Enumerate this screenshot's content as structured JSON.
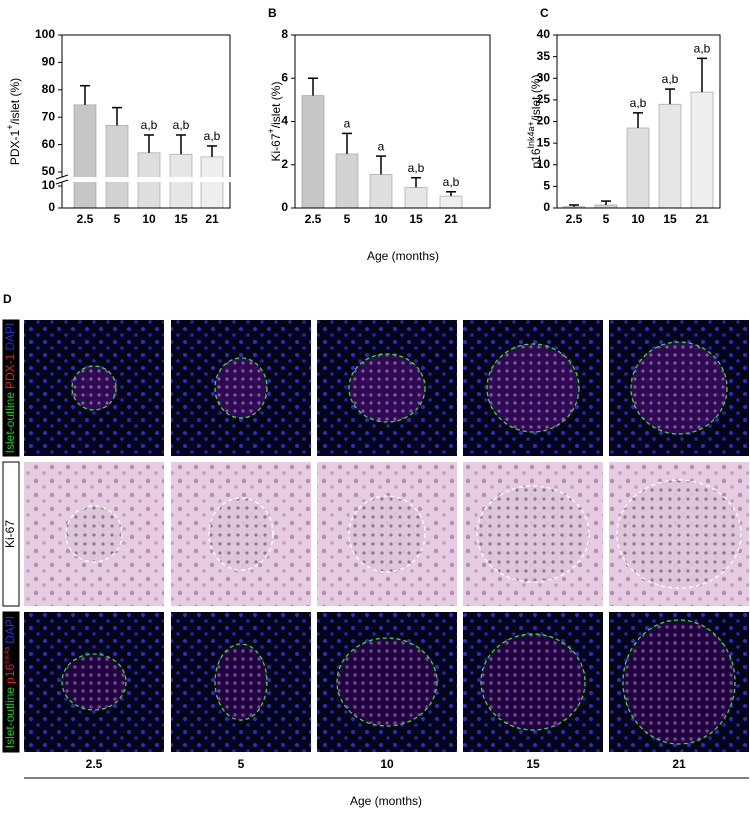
{
  "chart_data": [
    {
      "type": "bar",
      "panel": null,
      "ylabel": [
        "PDX-1",
        "+",
        "/islet (%)"
      ],
      "categories": [
        "2.5",
        "5",
        "10",
        "15",
        "21"
      ],
      "values": [
        74.5,
        67,
        57,
        56.5,
        55.5
      ],
      "errors": [
        7,
        6.5,
        6.5,
        7,
        4
      ],
      "annotations": [
        null,
        null,
        "a,b",
        "a,b",
        "a,b"
      ],
      "colors": [
        "#c6c6c6",
        "#d2d2d2",
        "#dedede",
        "#e6e6e6",
        "#eeeeee"
      ],
      "ylim": [
        0,
        100
      ],
      "yticks": [
        0,
        10,
        50,
        60,
        70,
        80,
        90,
        100
      ],
      "axis_break": [
        10,
        50
      ]
    },
    {
      "type": "bar",
      "panel": "B",
      "ylabel": [
        "Ki-67",
        "+",
        "/islet (%)"
      ],
      "xlabel": "Age (months)",
      "categories": [
        "2.5",
        "5",
        "10",
        "15",
        "21"
      ],
      "values": [
        5.2,
        2.5,
        1.55,
        0.95,
        0.55
      ],
      "errors": [
        0.8,
        0.95,
        0.85,
        0.45,
        0.2
      ],
      "annotations": [
        null,
        "a",
        "a",
        "a,b",
        "a,b"
      ],
      "colors": [
        "#c6c6c6",
        "#d2d2d2",
        "#dedede",
        "#e6e6e6",
        "#eeeeee"
      ],
      "ylim": [
        0,
        8
      ],
      "yticks": [
        0,
        2,
        4,
        6,
        8
      ]
    },
    {
      "type": "bar",
      "panel": "C",
      "ylabel": [
        "p16",
        "Ink4a+",
        "/islet (%)"
      ],
      "categories": [
        "2.5",
        "5",
        "10",
        "15",
        "21"
      ],
      "values": [
        0.3,
        0.7,
        18.5,
        24,
        26.8
      ],
      "errors": [
        0.4,
        0.9,
        3.5,
        3.5,
        7.8
      ],
      "annotations": [
        null,
        null,
        "a,b",
        "a,b",
        "a,b"
      ],
      "colors": [
        "#c6c6c6",
        "#d2d2d2",
        "#dedede",
        "#e6e6e6",
        "#eeeeee"
      ],
      "ylim": [
        0,
        40
      ],
      "yticks": [
        0,
        5,
        10,
        15,
        20,
        25,
        30,
        35,
        40
      ]
    }
  ],
  "panel_d": {
    "panel": "D",
    "columns": [
      "2.5",
      "5",
      "10",
      "15",
      "21"
    ],
    "xlabel": "Age (months)",
    "row_labels": [
      [
        {
          "text": "Islet-outline",
          "color": "#22c422"
        },
        {
          "text": "PDX-1",
          "color": "#e02020"
        },
        {
          "text": "DAPI",
          "color": "#2030e0"
        }
      ],
      [
        {
          "text": "Ki-67",
          "color": "#000000"
        }
      ],
      [
        {
          "text": "Islet-outline",
          "color": "#22c422"
        },
        {
          "text": "p16",
          "color": "#e02020"
        },
        {
          "text": "Ink4a",
          "color": "#e02020",
          "sup": true
        },
        {
          "text": "DAPI",
          "color": "#2030e0"
        }
      ]
    ]
  }
}
